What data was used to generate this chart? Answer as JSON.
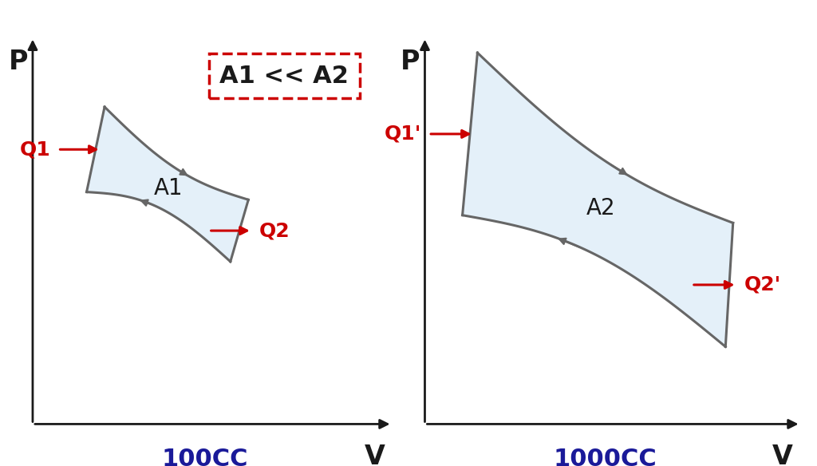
{
  "fig_width": 10.24,
  "fig_height": 5.84,
  "bg_color": "#ffffff",
  "axis_color": "#1a1a1a",
  "fill_color": "#d6e8f7",
  "fill_alpha": 0.65,
  "curve_color": "#666666",
  "curve_lw": 2.2,
  "red_color": "#cc0000",
  "blue_color": "#1a1a99",
  "left_label": "100CC",
  "right_label": "1000CC",
  "annotation_text": "A1 << A2",
  "left_area_label": "A1",
  "right_area_label": "A2",
  "left_q1": "Q1",
  "left_q2": "Q2",
  "right_q1": "Q1'",
  "right_q2": "Q2'"
}
